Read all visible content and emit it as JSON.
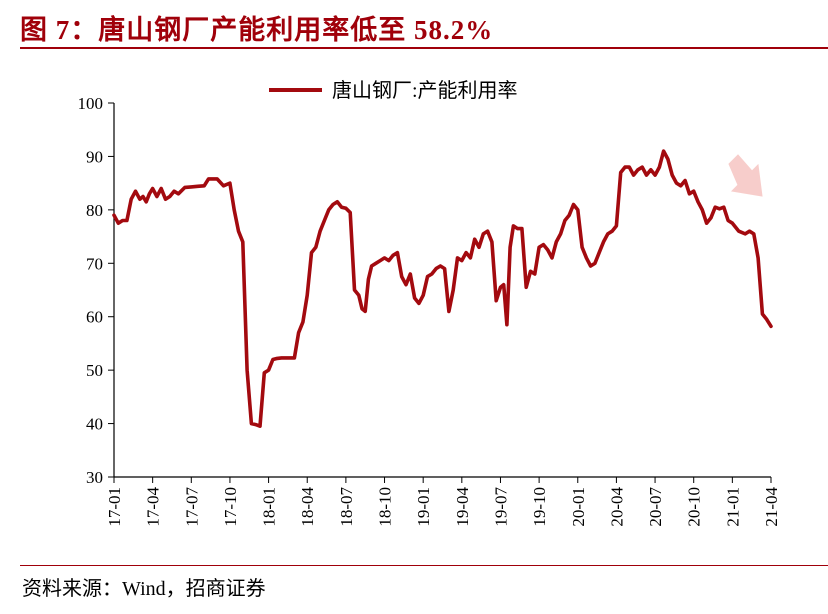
{
  "header": {
    "title": "图 7：唐山钢厂产能利用率低至 58.2%"
  },
  "footer": {
    "source": "资料来源：Wind，招商证券"
  },
  "colors": {
    "accent": "#a0000a",
    "series": "#a30a0f",
    "arrow": "#f2a6a1"
  },
  "icons": {
    "trend_arrow": "down-right-arrow-icon"
  },
  "chart_data": {
    "type": "line",
    "title": "",
    "xlabel": "",
    "ylabel": "",
    "ylim": [
      30,
      100
    ],
    "yticks": [
      30,
      40,
      50,
      60,
      70,
      80,
      90,
      100
    ],
    "xrange": [
      "17-01",
      "21-04"
    ],
    "xticks": [
      "17-01",
      "17-04",
      "17-07",
      "17-10",
      "18-01",
      "18-04",
      "18-07",
      "18-10",
      "19-01",
      "19-04",
      "19-07",
      "19-10",
      "20-01",
      "20-04",
      "20-07",
      "20-10",
      "21-01",
      "21-04"
    ],
    "legend": {
      "position": "top-center"
    },
    "grid": false,
    "series": [
      {
        "name": "唐山钢厂:产能利用率",
        "points": [
          [
            "17-01",
            79.0
          ],
          [
            "17-01",
            77.5
          ],
          [
            "17-01",
            78.0
          ],
          [
            "17-02",
            78.0
          ],
          [
            "17-02",
            82.0
          ],
          [
            "17-02",
            83.5
          ],
          [
            "17-03",
            82.0
          ],
          [
            "17-03",
            82.5
          ],
          [
            "17-03",
            81.5
          ],
          [
            "17-03",
            83.0
          ],
          [
            "17-04",
            84.0
          ],
          [
            "17-04",
            82.5
          ],
          [
            "17-04",
            84.0
          ],
          [
            "17-05",
            82.0
          ],
          [
            "17-05",
            82.5
          ],
          [
            "17-05",
            83.5
          ],
          [
            "17-06",
            83.0
          ],
          [
            "17-06",
            84.2
          ],
          [
            "17-07",
            84.3
          ],
          [
            "17-07",
            84.4
          ],
          [
            "17-08",
            84.5
          ],
          [
            "17-08",
            85.8
          ],
          [
            "17-08",
            85.8
          ],
          [
            "17-09",
            85.8
          ],
          [
            "17-09",
            84.5
          ],
          [
            "17-10",
            85.0
          ],
          [
            "17-10",
            80.0
          ],
          [
            "17-10",
            76.0
          ],
          [
            "17-11",
            74.0
          ],
          [
            "17-11",
            50.0
          ],
          [
            "17-11",
            40.0
          ],
          [
            "17-12",
            39.8
          ],
          [
            "17-12",
            39.5
          ],
          [
            "17-12",
            49.5
          ],
          [
            "18-01",
            50.0
          ],
          [
            "18-01",
            52.0
          ],
          [
            "18-01",
            52.2
          ],
          [
            "18-02",
            52.3
          ],
          [
            "18-02",
            52.3
          ],
          [
            "18-03",
            52.3
          ],
          [
            "18-03",
            57.0
          ],
          [
            "18-03",
            59.0
          ],
          [
            "18-04",
            64.0
          ],
          [
            "18-04",
            72.0
          ],
          [
            "18-04",
            73.0
          ],
          [
            "18-05",
            76.0
          ],
          [
            "18-05",
            78.0
          ],
          [
            "18-05",
            80.0
          ],
          [
            "18-06",
            81.0
          ],
          [
            "18-06",
            81.5
          ],
          [
            "18-06",
            80.5
          ],
          [
            "18-07",
            80.3
          ],
          [
            "18-07",
            79.5
          ],
          [
            "18-07",
            65.0
          ],
          [
            "18-08",
            64.0
          ],
          [
            "18-08",
            61.5
          ],
          [
            "18-08",
            61.0
          ],
          [
            "18-08",
            67.0
          ],
          [
            "18-09",
            69.5
          ],
          [
            "18-09",
            70.0
          ],
          [
            "18-09",
            70.5
          ],
          [
            "18-10",
            71.0
          ],
          [
            "18-10",
            70.5
          ],
          [
            "18-10",
            71.5
          ],
          [
            "18-11",
            72.0
          ],
          [
            "18-11",
            67.5
          ],
          [
            "18-11",
            66.0
          ],
          [
            "18-12",
            68.0
          ],
          [
            "18-12",
            63.5
          ],
          [
            "18-12",
            62.5
          ],
          [
            "19-01",
            64.0
          ],
          [
            "19-01",
            67.5
          ],
          [
            "19-01",
            68.0
          ],
          [
            "19-02",
            69.0
          ],
          [
            "19-02",
            69.5
          ],
          [
            "19-02",
            69.0
          ],
          [
            "19-03",
            61.0
          ],
          [
            "19-03",
            65.0
          ],
          [
            "19-03",
            71.0
          ],
          [
            "19-04",
            70.5
          ],
          [
            "19-04",
            72.0
          ],
          [
            "19-04",
            71.0
          ],
          [
            "19-05",
            74.5
          ],
          [
            "19-05",
            73.0
          ],
          [
            "19-05",
            75.5
          ],
          [
            "19-06",
            76.0
          ],
          [
            "19-06",
            74.0
          ],
          [
            "19-06",
            63.0
          ],
          [
            "19-07",
            65.5
          ],
          [
            "19-07",
            66.0
          ],
          [
            "19-07",
            58.5
          ],
          [
            "19-07",
            73.0
          ],
          [
            "19-08",
            77.0
          ],
          [
            "19-08",
            76.5
          ],
          [
            "19-08",
            76.5
          ],
          [
            "19-09",
            65.5
          ],
          [
            "19-09",
            68.5
          ],
          [
            "19-09",
            68.0
          ],
          [
            "19-10",
            73.0
          ],
          [
            "19-10",
            73.5
          ],
          [
            "19-10",
            72.5
          ],
          [
            "19-11",
            71.0
          ],
          [
            "19-11",
            74.0
          ],
          [
            "19-11",
            75.5
          ],
          [
            "19-12",
            78.0
          ],
          [
            "19-12",
            79.0
          ],
          [
            "19-12",
            81.0
          ],
          [
            "20-01",
            80.0
          ],
          [
            "20-01",
            73.0
          ],
          [
            "20-01",
            71.0
          ],
          [
            "20-02",
            69.5
          ],
          [
            "20-02",
            70.0
          ],
          [
            "20-02",
            72.0
          ],
          [
            "20-03",
            74.0
          ],
          [
            "20-03",
            75.5
          ],
          [
            "20-03",
            76.0
          ],
          [
            "20-04",
            77.0
          ],
          [
            "20-04",
            87.0
          ],
          [
            "20-04",
            88.0
          ],
          [
            "20-05",
            88.0
          ],
          [
            "20-05",
            86.5
          ],
          [
            "20-05",
            87.5
          ],
          [
            "20-06",
            88.0
          ],
          [
            "20-06",
            86.5
          ],
          [
            "20-06",
            87.5
          ],
          [
            "20-07",
            86.5
          ],
          [
            "20-07",
            88.0
          ],
          [
            "20-07",
            91.0
          ],
          [
            "20-08",
            89.5
          ],
          [
            "20-08",
            86.5
          ],
          [
            "20-08",
            85.0
          ],
          [
            "20-09",
            84.5
          ],
          [
            "20-09",
            85.5
          ],
          [
            "20-09",
            83.0
          ],
          [
            "20-10",
            83.5
          ],
          [
            "20-10",
            81.5
          ],
          [
            "20-10",
            80.0
          ],
          [
            "20-11",
            77.5
          ],
          [
            "20-11",
            78.5
          ],
          [
            "20-11",
            80.5
          ],
          [
            "20-12",
            80.2
          ],
          [
            "20-12",
            80.5
          ],
          [
            "20-12",
            78.0
          ],
          [
            "21-01",
            77.5
          ],
          [
            "21-01",
            76.0
          ],
          [
            "21-02",
            75.5
          ],
          [
            "21-02",
            76.0
          ],
          [
            "21-02",
            75.5
          ],
          [
            "21-03",
            71.0
          ],
          [
            "21-03",
            60.5
          ],
          [
            "21-03",
            59.5
          ],
          [
            "21-04",
            58.2
          ]
        ]
      }
    ]
  }
}
